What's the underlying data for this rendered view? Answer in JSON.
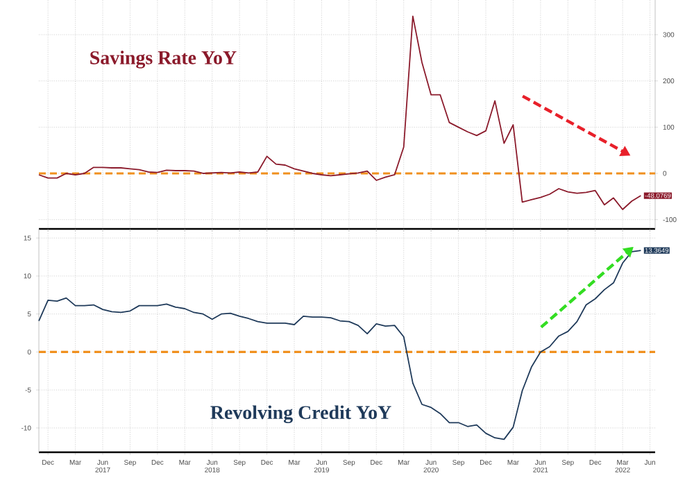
{
  "chart_data": [
    {
      "type": "line",
      "title": "Savings Rate YoY",
      "grid": true,
      "tick_labels": "y",
      "x": [
        "2016-11",
        "2016-12",
        "2017-01",
        "2017-02",
        "2017-03",
        "2017-04",
        "2017-05",
        "2017-06",
        "2017-07",
        "2017-08",
        "2017-09",
        "2017-10",
        "2017-11",
        "2017-12",
        "2018-01",
        "2018-02",
        "2018-03",
        "2018-04",
        "2018-05",
        "2018-06",
        "2018-07",
        "2018-08",
        "2018-09",
        "2018-10",
        "2018-11",
        "2018-12",
        "2019-01",
        "2019-02",
        "2019-03",
        "2019-04",
        "2019-05",
        "2019-06",
        "2019-07",
        "2019-08",
        "2019-09",
        "2019-10",
        "2019-11",
        "2019-12",
        "2020-01",
        "2020-02",
        "2020-03",
        "2020-04",
        "2020-05",
        "2020-06",
        "2020-07",
        "2020-08",
        "2020-09",
        "2020-10",
        "2020-11",
        "2020-12",
        "2021-01",
        "2021-02",
        "2021-03",
        "2021-04",
        "2021-05",
        "2021-06",
        "2021-07",
        "2021-08",
        "2021-09",
        "2021-10",
        "2021-11",
        "2021-12",
        "2022-01",
        "2022-02",
        "2022-03",
        "2022-04",
        "2022-05"
      ],
      "series": [
        {
          "color": "#8b1a2b",
          "values": [
            -3,
            -10,
            -10,
            0,
            -3,
            0,
            13,
            13,
            12,
            12,
            10,
            8,
            3,
            2,
            7,
            6,
            6,
            5,
            0,
            1,
            2,
            1,
            3,
            1,
            3,
            37,
            20,
            18,
            10,
            5,
            0,
            -3,
            -5,
            -3,
            -1,
            1,
            5,
            -15,
            -8,
            -3,
            57,
            340,
            240,
            170,
            170,
            110,
            100,
            90,
            82,
            92,
            157,
            65,
            105,
            -62,
            -57,
            -52,
            -45,
            -33,
            -40,
            -43,
            -41,
            -37,
            -68,
            -53,
            -78,
            -60,
            -48.0769
          ],
          "value_labels": [
            null,
            null,
            null,
            null,
            null,
            null,
            null,
            null,
            null,
            null,
            null,
            null,
            null,
            null,
            null,
            null,
            null,
            null,
            null,
            null,
            null,
            null,
            null,
            null,
            null,
            null,
            null,
            null,
            null,
            null,
            null,
            null,
            null,
            null,
            null,
            null,
            null,
            null,
            null,
            null,
            null,
            null,
            null,
            null,
            null,
            null,
            null,
            null,
            null,
            null,
            null,
            null,
            null,
            null,
            null,
            null,
            null,
            null,
            null,
            null,
            null,
            null,
            null,
            null,
            null,
            null,
            "-48.0769"
          ]
        }
      ],
      "ref_lines": [
        {
          "axis": "y",
          "value": 0,
          "color": "#f0901e",
          "line_style": "dashed"
        }
      ],
      "xlim": [
        "2016-11",
        "2022-06-18"
      ],
      "xticks": [
        {
          "value": "2016-12",
          "label": null
        },
        {
          "value": "2017-03",
          "label": null
        },
        {
          "value": "2017-06",
          "label": null
        },
        {
          "value": "2017-09",
          "label": null
        },
        {
          "value": "2017-12",
          "label": null
        },
        {
          "value": "2018-03",
          "label": null
        },
        {
          "value": "2018-06",
          "label": null
        },
        {
          "value": "2018-09",
          "label": null
        },
        {
          "value": "2018-12",
          "label": null
        },
        {
          "value": "2019-03",
          "label": null
        },
        {
          "value": "2019-06",
          "label": null
        },
        {
          "value": "2019-09",
          "label": null
        },
        {
          "value": "2019-12",
          "label": null
        },
        {
          "value": "2020-03",
          "label": null
        },
        {
          "value": "2020-06",
          "label": null
        },
        {
          "value": "2020-09",
          "label": null
        },
        {
          "value": "2020-12",
          "label": null
        },
        {
          "value": "2021-03",
          "label": null
        },
        {
          "value": "2021-06",
          "label": null
        },
        {
          "value": "2021-09",
          "label": null
        },
        {
          "value": "2021-12",
          "label": null
        },
        {
          "value": "2022-03",
          "label": null
        },
        {
          "value": "2022-06",
          "label": null
        }
      ],
      "ylim": [
        -120,
        375
      ],
      "yticks": [
        -100,
        0,
        100,
        200,
        300
      ]
    },
    {
      "type": "line",
      "title": "Revolving Credit YoY",
      "grid": true,
      "x": [
        "2016-11",
        "2016-12",
        "2017-01",
        "2017-02",
        "2017-03",
        "2017-04",
        "2017-05",
        "2017-06",
        "2017-07",
        "2017-08",
        "2017-09",
        "2017-10",
        "2017-11",
        "2017-12",
        "2018-01",
        "2018-02",
        "2018-03",
        "2018-04",
        "2018-05",
        "2018-06",
        "2018-07",
        "2018-08",
        "2018-09",
        "2018-10",
        "2018-11",
        "2018-12",
        "2019-01",
        "2019-02",
        "2019-03",
        "2019-04",
        "2019-05",
        "2019-06",
        "2019-07",
        "2019-08",
        "2019-09",
        "2019-10",
        "2019-11",
        "2019-12",
        "2020-01",
        "2020-02",
        "2020-03",
        "2020-04",
        "2020-05",
        "2020-06",
        "2020-07",
        "2020-08",
        "2020-09",
        "2020-10",
        "2020-11",
        "2020-12",
        "2021-01",
        "2021-02",
        "2021-03",
        "2021-04",
        "2021-05",
        "2021-06",
        "2021-07",
        "2021-08",
        "2021-09",
        "2021-10",
        "2021-11",
        "2021-12",
        "2022-01",
        "2022-02",
        "2022-03",
        "2022-04",
        "2022-05"
      ],
      "series": [
        {
          "color": "#1f3a5a",
          "values": [
            4.1,
            6.8,
            6.7,
            7.1,
            6.1,
            6.1,
            6.2,
            5.6,
            5.3,
            5.2,
            5.4,
            6.1,
            6.1,
            6.1,
            6.3,
            5.9,
            5.7,
            5.2,
            5.0,
            4.3,
            5.0,
            5.1,
            4.7,
            4.4,
            4.0,
            3.8,
            3.8,
            3.8,
            3.6,
            4.7,
            4.6,
            4.6,
            4.5,
            4.1,
            4.0,
            3.5,
            2.4,
            3.7,
            3.4,
            3.5,
            2.0,
            -4.1,
            -6.9,
            -7.3,
            -8.1,
            -9.3,
            -9.3,
            -9.8,
            -9.6,
            -10.7,
            -11.3,
            -11.5,
            -9.9,
            -5.1,
            -2.0,
            0,
            0.7,
            2.1,
            2.7,
            4.0,
            6.2,
            7.0,
            8.2,
            9.1,
            11.7,
            13.2,
            13.3649
          ],
          "value_labels": [
            null,
            null,
            null,
            null,
            null,
            null,
            null,
            null,
            null,
            null,
            null,
            null,
            null,
            null,
            null,
            null,
            null,
            null,
            null,
            null,
            null,
            null,
            null,
            null,
            null,
            null,
            null,
            null,
            null,
            null,
            null,
            null,
            null,
            null,
            null,
            null,
            null,
            null,
            null,
            null,
            null,
            null,
            null,
            null,
            null,
            null,
            null,
            null,
            null,
            null,
            null,
            null,
            null,
            null,
            null,
            null,
            null,
            null,
            null,
            null,
            null,
            null,
            null,
            null,
            null,
            null,
            "13.3649"
          ]
        }
      ],
      "ref_lines": [
        {
          "axis": "y",
          "value": 0,
          "color": "#f0901e",
          "line_style": "dashed"
        }
      ],
      "xlim": [
        "2016-11",
        "2022-06-18"
      ],
      "xticks": [
        {
          "value": "2016-12",
          "label": "Dec"
        },
        {
          "value": "2017-03",
          "label": "Mar"
        },
        {
          "value": "2017-06",
          "label": "Jun 2017"
        },
        {
          "value": "2017-09",
          "label": "Sep"
        },
        {
          "value": "2017-12",
          "label": "Dec"
        },
        {
          "value": "2018-03",
          "label": "Mar"
        },
        {
          "value": "2018-06",
          "label": "Jun 2018"
        },
        {
          "value": "2018-09",
          "label": "Sep"
        },
        {
          "value": "2018-12",
          "label": "Dec"
        },
        {
          "value": "2019-03",
          "label": "Mar"
        },
        {
          "value": "2019-06",
          "label": "Jun 2019"
        },
        {
          "value": "2019-09",
          "label": "Sep"
        },
        {
          "value": "2019-12",
          "label": "Dec"
        },
        {
          "value": "2020-03",
          "label": "Mar"
        },
        {
          "value": "2020-06",
          "label": "Jun 2020"
        },
        {
          "value": "2020-09",
          "label": "Sep"
        },
        {
          "value": "2020-12",
          "label": "Dec"
        },
        {
          "value": "2021-03",
          "label": "Mar"
        },
        {
          "value": "2021-06",
          "label": "Jun 2021"
        },
        {
          "value": "2021-09",
          "label": "Sep"
        },
        {
          "value": "2021-12",
          "label": "Dec"
        },
        {
          "value": "2022-03",
          "label": "Mar 2022"
        },
        {
          "value": "2022-06",
          "label": "Jun"
        }
      ],
      "ylim": [
        -13.2,
        16.2
      ],
      "yticks": [
        -10,
        -5,
        0,
        5,
        10,
        15
      ]
    }
  ]
}
